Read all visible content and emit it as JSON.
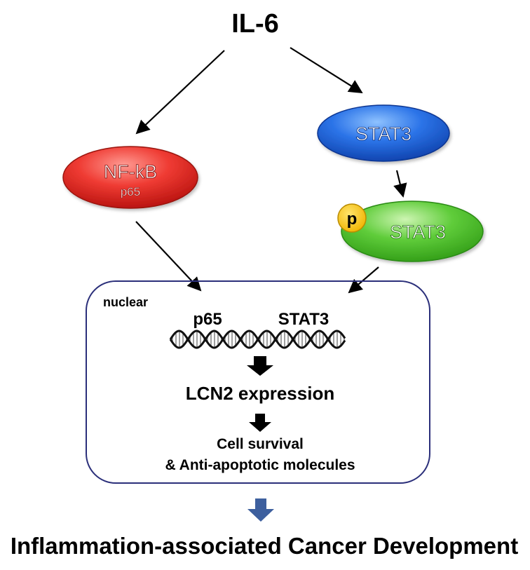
{
  "title": "IL-6",
  "nodes": {
    "nfkb": {
      "label": "NF-kB",
      "sublabel": "p65"
    },
    "stat3": {
      "label": "STAT3"
    },
    "pstat3": {
      "label": "STAT3",
      "phospho_label": "p"
    }
  },
  "nucleus": {
    "label": "nuclear",
    "p65_label": "p65",
    "stat3_label": "STAT3",
    "expression_label": "LCN2 expression",
    "outcome_line1": "Cell survival",
    "outcome_line2": "& Anti-apoptotic molecules"
  },
  "footer": {
    "label": "Inflammation-associated Cancer Development"
  },
  "colors": {
    "nfkb": "#e8231f",
    "stat3": "#1f5fd6",
    "pstat3": "#3fb826",
    "phospho": "#f6c000",
    "nucleus_border": "#2b2f7a",
    "final_arrow": "#3d5f9e",
    "text": "#000000"
  },
  "icons": [
    "dna-helix-icon",
    "down-arrow-icon"
  ]
}
